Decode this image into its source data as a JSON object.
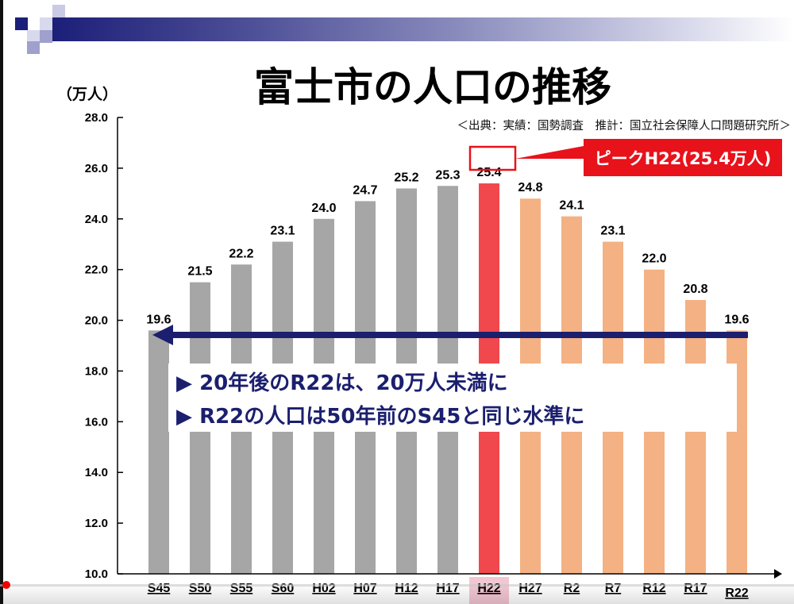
{
  "title": "富士市の人口の推移",
  "source": "＜出典：実績：国勢調査　推計：国立社会保障人口問題研究所＞",
  "callout": "ピークH22(25.4万人)",
  "messages": [
    {
      "marker": "▶",
      "text": "20年後のR22は、20万人未満に"
    },
    {
      "marker": "▶",
      "text": "R22の人口は50年前のS45と同じ水準に"
    }
  ],
  "colors": {
    "actual": "#a6a6a6",
    "peak": "#f0484c",
    "projected": "#f4b183",
    "arrow": "#1b1f6e",
    "callout": "#e8121b",
    "banner": "#1c1f78"
  },
  "chart_data": {
    "type": "bar",
    "ylabel": "（万人）",
    "ylim": [
      10,
      28
    ],
    "yticks": [
      "10.0",
      "12.0",
      "14.0",
      "16.0",
      "18.0",
      "20.0",
      "22.0",
      "24.0",
      "26.0",
      "28.0"
    ],
    "categories": [
      "S45",
      "S50",
      "S55",
      "S60",
      "H02",
      "H07",
      "H12",
      "H17",
      "H22",
      "H27",
      "R2",
      "R7",
      "R12",
      "R17",
      "R22"
    ],
    "values": [
      19.6,
      21.5,
      22.2,
      23.1,
      24.0,
      24.7,
      25.2,
      25.3,
      25.4,
      24.8,
      24.1,
      23.1,
      22.0,
      20.8,
      19.6
    ],
    "labels": [
      "19.6",
      "21.5",
      "22.2",
      "23.1",
      "24.0",
      "24.7",
      "25.2",
      "25.3",
      "25.4",
      "24.8",
      "24.1",
      "23.1",
      "22.0",
      "20.8",
      "19.6"
    ],
    "kind": [
      "actual",
      "actual",
      "actual",
      "actual",
      "actual",
      "actual",
      "actual",
      "actual",
      "peak",
      "projected",
      "projected",
      "projected",
      "projected",
      "projected",
      "projected"
    ],
    "highlight": "H22",
    "grid": false
  }
}
